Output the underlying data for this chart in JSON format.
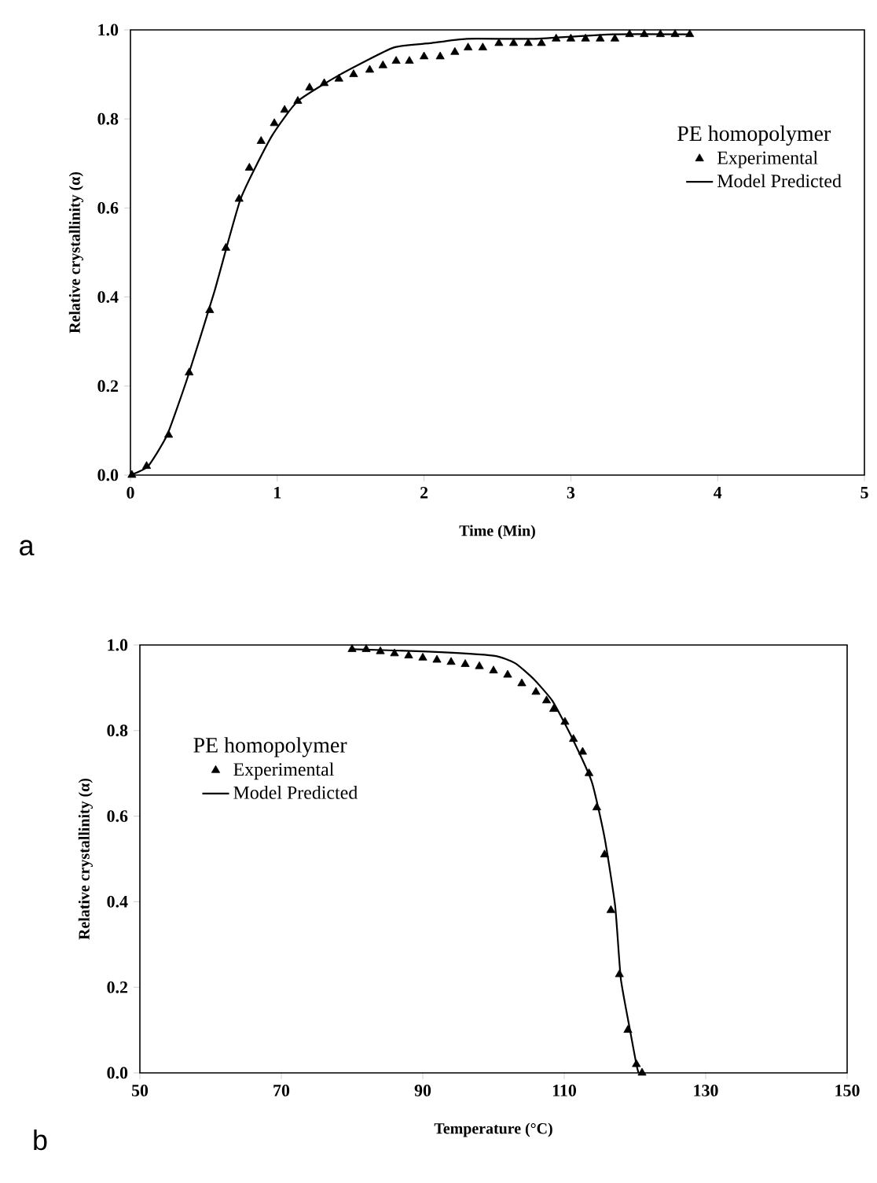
{
  "chart_data": [
    {
      "type": "scatter",
      "xlabel": "Time (Min)",
      "ylabel": "Relative crystallinity (α)",
      "legend_title": "PE homopolymer",
      "annotations": [
        "a"
      ],
      "legend": "top right",
      "grid": false,
      "xlim": [
        0,
        5
      ],
      "xticks": [
        0,
        1,
        2,
        3,
        4,
        5
      ],
      "ylim": [
        0,
        1
      ],
      "yticks": [
        {
          "value": 0,
          "label": "0.0"
        },
        {
          "value": 0.2,
          "label": "0.2"
        },
        {
          "value": 0.4,
          "label": "0.4"
        },
        {
          "value": 0.6,
          "label": "0.6"
        },
        {
          "value": 0.8,
          "label": "0.8"
        },
        {
          "value": 1,
          "label": "1.0"
        }
      ],
      "series": [
        {
          "name": "Experimental",
          "marker": "triangle",
          "color": "#000000",
          "x": [
            0.01,
            0.11,
            0.26,
            0.4,
            0.54,
            0.65,
            0.74,
            0.81,
            0.89,
            0.98,
            1.05,
            1.14,
            1.22,
            1.32,
            1.42,
            1.52,
            1.63,
            1.72,
            1.81,
            1.9,
            2.0,
            2.11,
            2.21,
            2.3,
            2.4,
            2.51,
            2.61,
            2.71,
            2.8,
            2.9,
            3.0,
            3.1,
            3.2,
            3.3,
            3.4,
            3.5,
            3.61,
            3.71,
            3.81
          ],
          "values": [
            0.0,
            0.02,
            0.09,
            0.23,
            0.37,
            0.51,
            0.62,
            0.69,
            0.75,
            0.79,
            0.82,
            0.84,
            0.87,
            0.88,
            0.89,
            0.9,
            0.91,
            0.92,
            0.93,
            0.93,
            0.94,
            0.94,
            0.95,
            0.96,
            0.96,
            0.97,
            0.97,
            0.97,
            0.97,
            0.98,
            0.98,
            0.98,
            0.98,
            0.98,
            0.99,
            0.99,
            0.99,
            0.99,
            0.99
          ]
        },
        {
          "name": "Model Predicted",
          "type": "line",
          "marker": "none",
          "line_style": "solid",
          "color": "#000000",
          "x": [
            0,
            0.12,
            0.25,
            0.39,
            0.57,
            0.75,
            0.96,
            1.14,
            1.43,
            1.79,
            2.04,
            2.29,
            2.75,
            3.29,
            3.82
          ],
          "values": [
            0,
            0.02,
            0.09,
            0.22,
            0.41,
            0.62,
            0.76,
            0.84,
            0.9,
            0.96,
            0.97,
            0.98,
            0.98,
            0.99,
            0.99
          ]
        }
      ]
    },
    {
      "type": "scatter",
      "xlabel": "Temperature (°C)",
      "ylabel": "Relative crystallinity (α)",
      "legend_title": "PE homopolymer",
      "annotations": [
        "b"
      ],
      "legend": "top left",
      "grid": false,
      "xlim": [
        50,
        150
      ],
      "xticks": [
        50,
        70,
        90,
        110,
        130,
        150
      ],
      "ylim": [
        0,
        1
      ],
      "yticks": [
        {
          "value": 0,
          "label": "0.0"
        },
        {
          "value": 0.2,
          "label": "0.2"
        },
        {
          "value": 0.4,
          "label": "0.4"
        },
        {
          "value": 0.6,
          "label": "0.6"
        },
        {
          "value": 0.8,
          "label": "0.8"
        },
        {
          "value": 1,
          "label": "1.0"
        }
      ],
      "series": [
        {
          "name": "Experimental",
          "marker": "triangle",
          "color": "#000000",
          "x": [
            80,
            82,
            84,
            86,
            88,
            90,
            92,
            94,
            96,
            98,
            100,
            102,
            104,
            106,
            107.5,
            108.5,
            110.1,
            111.3,
            112.6,
            113.5,
            114.6,
            115.7,
            116.6,
            117.8,
            119,
            120.2,
            121
          ],
          "values": [
            0.99,
            0.99,
            0.985,
            0.98,
            0.975,
            0.97,
            0.965,
            0.96,
            0.955,
            0.95,
            0.94,
            0.93,
            0.91,
            0.89,
            0.87,
            0.85,
            0.82,
            0.78,
            0.75,
            0.7,
            0.62,
            0.51,
            0.38,
            0.23,
            0.1,
            0.02,
            0.0
          ]
        },
        {
          "name": "Model Predicted",
          "type": "line",
          "marker": "none",
          "line_style": "solid",
          "color": "#000000",
          "x": [
            80,
            90,
            100,
            103.1,
            105.7,
            108.3,
            110.9,
            113.9,
            115.7,
            117.2,
            118,
            119.3,
            120.2,
            120.5
          ],
          "values": [
            0.99,
            0.985,
            0.975,
            0.957,
            0.92,
            0.87,
            0.79,
            0.68,
            0.55,
            0.39,
            0.22,
            0.1,
            0.02,
            0.0
          ]
        }
      ]
    }
  ]
}
